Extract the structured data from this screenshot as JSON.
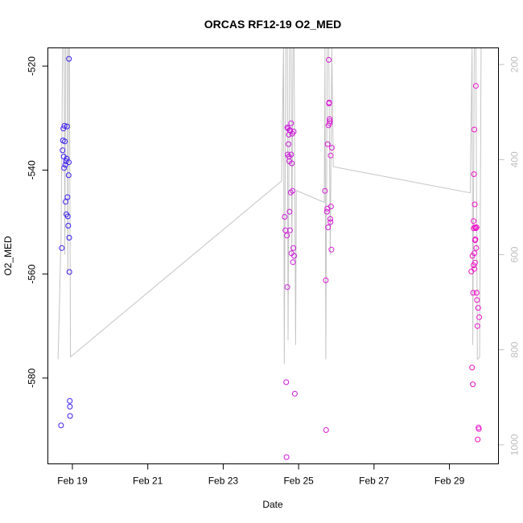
{
  "chart_data": {
    "type": "scatter",
    "title": "ORCAS RF12-19 O2_MED",
    "xlabel": "Date",
    "ylabel": "O2_MED",
    "x_unit": "days (Feb 2016)",
    "xlim": [
      18.35,
      30.3
    ],
    "ylim": [
      -596.5,
      -516.5
    ],
    "x_ticks": [
      {
        "value": 19,
        "label": "Feb 19"
      },
      {
        "value": 21,
        "label": "Feb 21"
      },
      {
        "value": 23,
        "label": "Feb 23"
      },
      {
        "value": 25,
        "label": "Feb 25"
      },
      {
        "value": 27,
        "label": "Feb 27"
      },
      {
        "value": 29,
        "label": "Feb 29"
      }
    ],
    "y_ticks": [
      -520,
      -540,
      -560,
      -580
    ],
    "right_axis": {
      "ylim": [
        1040,
        165
      ],
      "ticks": [
        200,
        400,
        600,
        800,
        1000
      ],
      "color": "#bebebe"
    },
    "grid": false,
    "legend": "none",
    "colors": {
      "flight_start": "#3b1ef0",
      "flight_end": "#ee10c8",
      "trace": "#c4c4c4"
    },
    "series": [
      {
        "color": "#3b1ef0",
        "points": [
          [
            18.7,
            -589.1
          ],
          [
            18.72,
            -555.0
          ],
          [
            18.74,
            -536.2
          ],
          [
            18.75,
            -534.3
          ],
          [
            18.76,
            -532.0
          ],
          [
            18.77,
            -537.4
          ],
          [
            18.78,
            -539.6
          ],
          [
            18.79,
            -531.5
          ],
          [
            18.8,
            -534.5
          ],
          [
            18.81,
            -539.0
          ],
          [
            18.82,
            -546.1
          ],
          [
            18.83,
            -538.3
          ],
          [
            18.84,
            -548.5
          ],
          [
            18.85,
            -537.8
          ],
          [
            18.86,
            -531.6
          ],
          [
            18.87,
            -545.2
          ],
          [
            18.88,
            -548.9
          ],
          [
            18.89,
            -550.7
          ],
          [
            18.9,
            -541.0
          ],
          [
            18.905,
            -538.5
          ],
          [
            18.91,
            -518.6
          ],
          [
            18.915,
            -553.0
          ],
          [
            18.92,
            -559.6
          ],
          [
            18.93,
            -584.4
          ],
          [
            18.935,
            -585.5
          ],
          [
            18.94,
            -587.3
          ]
        ]
      },
      {
        "color": "#cc18d8",
        "points": [
          [
            24.63,
            -549.0
          ],
          [
            24.65,
            -551.6
          ],
          [
            24.67,
            -580.8
          ],
          [
            24.68,
            -595.2
          ],
          [
            24.69,
            -552.6
          ],
          [
            24.7,
            -562.5
          ],
          [
            24.71,
            -537.0
          ],
          [
            24.72,
            -532.0
          ],
          [
            24.73,
            -535.0
          ],
          [
            24.74,
            -537.4
          ],
          [
            24.75,
            -538.3
          ],
          [
            24.76,
            -548.0
          ],
          [
            24.77,
            -551.6
          ],
          [
            24.78,
            -532.4
          ],
          [
            24.79,
            -544.3
          ],
          [
            24.8,
            -531.0
          ],
          [
            24.81,
            -556.0
          ],
          [
            24.82,
            -538.7
          ],
          [
            24.83,
            -533.0
          ],
          [
            24.84,
            -544.0
          ],
          [
            24.85,
            -557.7
          ],
          [
            24.86,
            -555.0
          ],
          [
            24.87,
            -532.6
          ],
          [
            24.88,
            -556.5
          ],
          [
            24.9,
            -583.0
          ],
          [
            24.74,
            -533.2
          ],
          [
            24.76,
            -532.3
          ],
          [
            24.7,
            -531.8
          ],
          [
            24.8,
            -537.0
          ]
        ]
      },
      {
        "color": "#d81ad4",
        "points": [
          [
            25.7,
            -544.0
          ],
          [
            25.72,
            -561.2
          ],
          [
            25.73,
            -590.0
          ],
          [
            25.75,
            -548.0
          ],
          [
            25.76,
            -547.4
          ],
          [
            25.77,
            -535.0
          ],
          [
            25.78,
            -551.0
          ],
          [
            25.79,
            -531.4
          ],
          [
            25.8,
            -518.8
          ],
          [
            25.805,
            -527.2
          ],
          [
            25.81,
            -527.0
          ],
          [
            25.82,
            -530.2
          ],
          [
            25.83,
            -530.6
          ],
          [
            25.84,
            -549.4
          ],
          [
            25.845,
            -550.0
          ],
          [
            25.85,
            -537.2
          ],
          [
            25.86,
            -547.0
          ],
          [
            25.87,
            -555.3
          ],
          [
            25.88,
            -535.7
          ],
          [
            25.82,
            -531.0
          ]
        ]
      },
      {
        "color": "#ee10c8",
        "points": [
          [
            29.58,
            -559.5
          ],
          [
            29.6,
            -578.0
          ],
          [
            29.61,
            -556.5
          ],
          [
            29.62,
            -581.2
          ],
          [
            29.63,
            -563.6
          ],
          [
            29.64,
            -549.8
          ],
          [
            29.65,
            -540.8
          ],
          [
            29.66,
            -532.2
          ],
          [
            29.67,
            -546.6
          ],
          [
            29.68,
            -551.0
          ],
          [
            29.69,
            -553.3
          ],
          [
            29.7,
            -523.8
          ],
          [
            29.71,
            -555.0
          ],
          [
            29.72,
            -563.6
          ],
          [
            29.73,
            -565.0
          ],
          [
            29.74,
            -570.0
          ],
          [
            29.75,
            -591.8
          ],
          [
            29.76,
            -566.5
          ],
          [
            29.77,
            -589.5
          ],
          [
            29.78,
            -589.8
          ],
          [
            29.79,
            -568.3
          ],
          [
            29.64,
            -558.3
          ],
          [
            29.66,
            -559.0
          ],
          [
            29.68,
            -553.5
          ],
          [
            29.7,
            -551.2
          ],
          [
            29.72,
            -551.0
          ],
          [
            29.64,
            -551.2
          ],
          [
            29.66,
            -556.0
          ],
          [
            29.68,
            -557.8
          ]
        ]
      }
    ],
    "trace": [
      [
        18.62,
        820
      ],
      [
        18.7,
        560
      ],
      [
        18.74,
        165
      ],
      [
        18.78,
        165
      ],
      [
        18.8,
        600
      ],
      [
        18.82,
        165
      ],
      [
        18.86,
        165
      ],
      [
        18.88,
        640
      ],
      [
        18.9,
        165
      ],
      [
        18.92,
        165
      ],
      [
        18.95,
        815
      ],
      [
        24.55,
        445
      ],
      [
        24.6,
        165
      ],
      [
        24.62,
        830
      ],
      [
        24.66,
        165
      ],
      [
        24.7,
        165
      ],
      [
        24.72,
        780
      ],
      [
        24.76,
        165
      ],
      [
        24.8,
        165
      ],
      [
        24.82,
        600
      ],
      [
        24.85,
        165
      ],
      [
        24.88,
        165
      ],
      [
        24.92,
        790
      ],
      [
        24.94,
        465
      ],
      [
        25.68,
        490
      ],
      [
        25.7,
        165
      ],
      [
        25.72,
        820
      ],
      [
        25.76,
        165
      ],
      [
        25.8,
        165
      ],
      [
        25.84,
        600
      ],
      [
        25.88,
        165
      ],
      [
        25.92,
        415
      ],
      [
        29.55,
        470
      ],
      [
        29.6,
        165
      ],
      [
        29.62,
        790
      ],
      [
        29.66,
        165
      ],
      [
        29.7,
        165
      ],
      [
        29.74,
        820
      ],
      [
        29.8,
        815
      ],
      [
        29.84,
        165
      ]
    ]
  }
}
